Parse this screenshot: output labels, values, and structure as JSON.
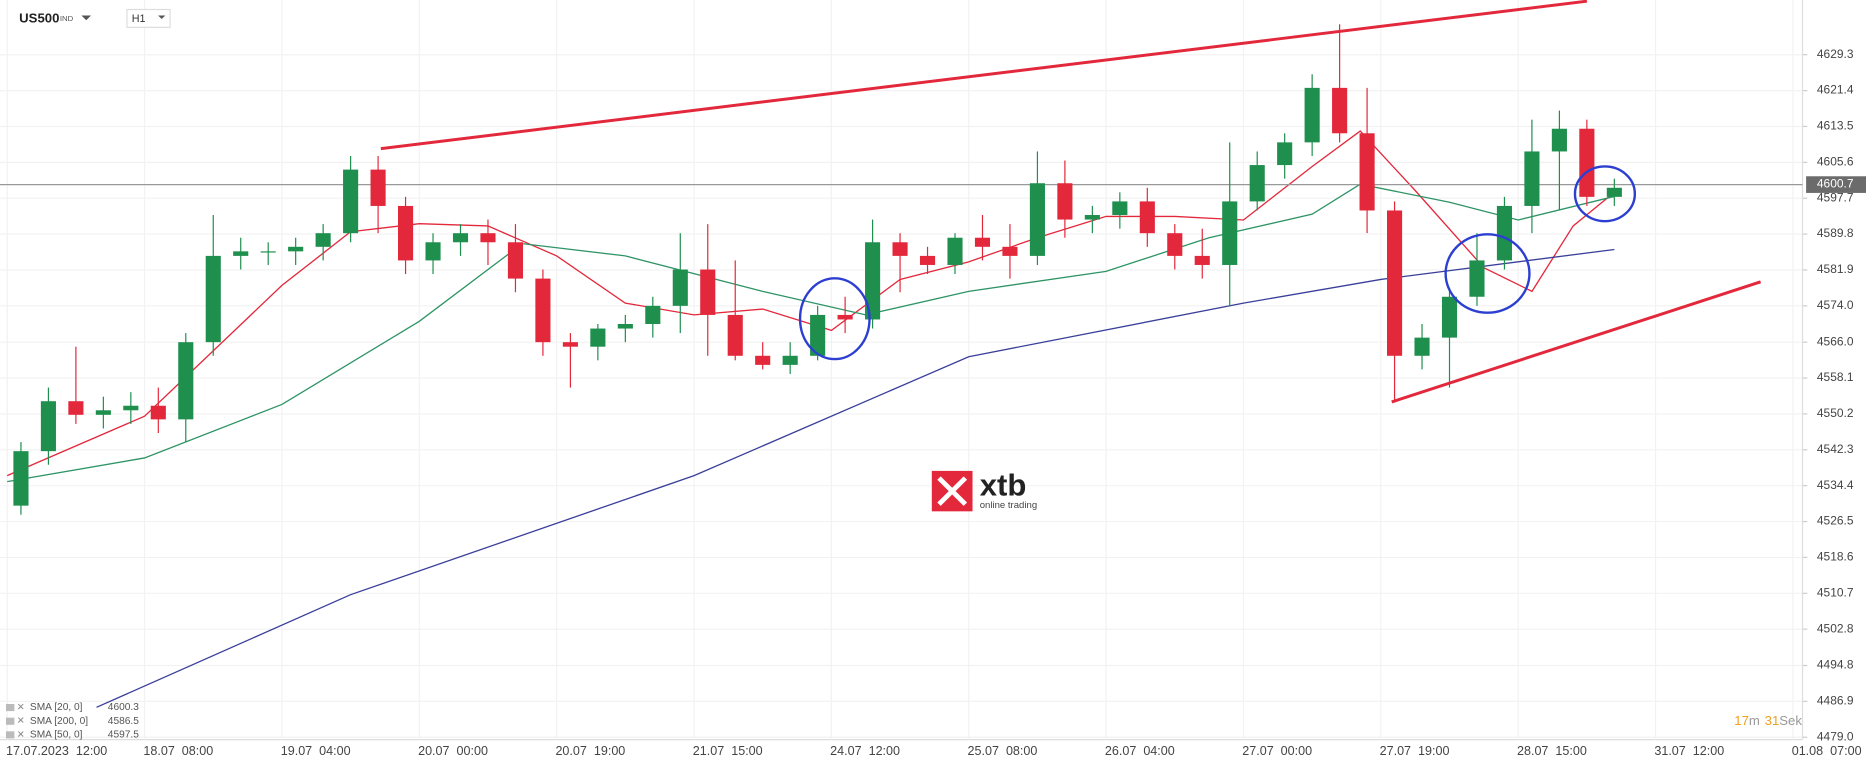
{
  "chart_data": {
    "type": "candlestick",
    "symbol": "US500",
    "symbol_class": "IND",
    "interval": "H1",
    "last_price": 4600.7,
    "timer": [
      "17",
      "m",
      "31",
      "Sek"
    ],
    "logo": {
      "brand": "xtb",
      "tagline": "online trading"
    },
    "up_color": "#1f8f4e",
    "down_color": "#e3283c",
    "grid": true,
    "xlim": [
      -1.05,
      261.4
    ],
    "ylim": [
      4478.47,
      4641.35
    ],
    "xticks": [
      {
        "value": 0,
        "label": "17.07.2023  12:00"
      },
      {
        "value": 20,
        "label": "18.07  08:00"
      },
      {
        "value": 40,
        "label": "19.07  04:00"
      },
      {
        "value": 60,
        "label": "20.07  00:00"
      },
      {
        "value": 80,
        "label": "20.07  19:00"
      },
      {
        "value": 100,
        "label": "21.07  15:00"
      },
      {
        "value": 120,
        "label": "24.07  12:00"
      },
      {
        "value": 140,
        "label": "25.07  08:00"
      },
      {
        "value": 160,
        "label": "26.07  04:00"
      },
      {
        "value": 180,
        "label": "27.07  00:00"
      },
      {
        "value": 200,
        "label": "27.07  19:00"
      },
      {
        "value": 220,
        "label": "28.07  15:00"
      },
      {
        "value": 240,
        "label": "31.07  12:00"
      },
      {
        "value": 260,
        "label": "01.08  07:00"
      }
    ],
    "yticks": [
      {
        "value": 4629.3,
        "label": "4629.3"
      },
      {
        "value": 4621.4,
        "label": "4621.4"
      },
      {
        "value": 4613.5,
        "label": "4613.5"
      },
      {
        "value": 4605.6,
        "label": "4605.6"
      },
      {
        "value": 4597.7,
        "label": "4597.7"
      },
      {
        "value": 4589.8,
        "label": "4589.8"
      },
      {
        "value": 4581.9,
        "label": "4581.9"
      },
      {
        "value": 4574.0,
        "label": "4574.0"
      },
      {
        "value": 4566.0,
        "label": "4566.0"
      },
      {
        "value": 4558.1,
        "label": "4558.1"
      },
      {
        "value": 4550.2,
        "label": "4550.2"
      },
      {
        "value": 4542.3,
        "label": "4542.3"
      },
      {
        "value": 4534.4,
        "label": "4534.4"
      },
      {
        "value": 4526.5,
        "label": "4526.5"
      },
      {
        "value": 4518.6,
        "label": "4518.6"
      },
      {
        "value": 4510.7,
        "label": "4510.7"
      },
      {
        "value": 4502.8,
        "label": "4502.8"
      },
      {
        "value": 4494.8,
        "label": "4494.8"
      },
      {
        "value": 4486.9,
        "label": "4486.9"
      },
      {
        "value": 4479.0,
        "label": "4479.0"
      }
    ],
    "x": [
      2,
      6,
      10,
      14,
      18,
      22,
      26,
      30,
      34,
      38,
      42,
      46,
      50,
      54,
      58,
      62,
      66,
      70,
      74,
      78,
      82,
      86,
      90,
      94,
      98,
      102,
      106,
      110,
      114,
      118,
      122,
      126,
      130,
      134,
      138,
      142,
      146,
      150,
      154,
      158,
      162,
      166,
      170,
      174,
      178,
      182,
      186,
      190,
      194,
      198,
      202,
      206,
      210,
      214,
      218,
      222,
      226,
      230,
      234
    ],
    "open": [
      4530,
      4542,
      4553,
      4550,
      4551,
      4552,
      4549,
      4566,
      4585,
      4586,
      4586,
      4587,
      4590,
      4604,
      4596,
      4584,
      4588,
      4590,
      4588,
      4580,
      4566,
      4565,
      4569,
      4570,
      4574,
      4582,
      4572,
      4563,
      4561,
      4563,
      4572,
      4571,
      4588,
      4585,
      4583,
      4589,
      4587,
      4585,
      4601,
      4593,
      4594,
      4597,
      4590,
      4585,
      4583,
      4597,
      4605,
      4610,
      4622,
      4612,
      4595,
      4563,
      4567,
      4576,
      4584,
      4596,
      4608,
      4613,
      4598
    ],
    "high": [
      4544,
      4556,
      4565,
      4554,
      4555,
      4556,
      4568,
      4594,
      4589,
      4588,
      4589,
      4592,
      4607,
      4607,
      4598,
      4590,
      4592,
      4593,
      4592,
      4582,
      4568,
      4570,
      4572,
      4576,
      4590,
      4592,
      4584,
      4566,
      4566,
      4574,
      4576,
      4593,
      4590,
      4587,
      4590,
      4594,
      4592,
      4608,
      4606,
      4596,
      4599,
      4600,
      4592,
      4591,
      4610,
      4608,
      4612,
      4625,
      4636,
      4622,
      4597,
      4570,
      4578,
      4590,
      4598,
      4615,
      4617,
      4615,
      4602
    ],
    "low": [
      4528,
      4539,
      4548,
      4547,
      4548,
      4546,
      4544,
      4563,
      4582,
      4583,
      4583,
      4584,
      4588,
      4590,
      4581,
      4581,
      4585,
      4583,
      4577,
      4563,
      4556,
      4562,
      4566,
      4567,
      4568,
      4563,
      4562,
      4560,
      4559,
      4562,
      4568,
      4569,
      4577,
      4581,
      4581,
      4584,
      4580,
      4583,
      4589,
      4590,
      4591,
      4587,
      4582,
      4580,
      4574,
      4595,
      4602,
      4607,
      4610,
      4590,
      4553,
      4560,
      4556,
      4574,
      4582,
      4590,
      4595,
      4596,
      4596
    ],
    "close": [
      4542,
      4553,
      4550,
      4551,
      4552,
      4549,
      4566,
      4585,
      4586,
      4586,
      4587,
      4590,
      4604,
      4596,
      4584,
      4588,
      4590,
      4588,
      4580,
      4566,
      4565,
      4569,
      4570,
      4574,
      4582,
      4572,
      4563,
      4561,
      4563,
      4572,
      4571,
      4588,
      4585,
      4583,
      4589,
      4587,
      4585,
      4601,
      4593,
      4594,
      4597,
      4590,
      4585,
      4583,
      4597,
      4605,
      4610,
      4622,
      4612,
      4595,
      4563,
      4567,
      4576,
      4584,
      4596,
      4608,
      4613,
      4598,
      4600
    ],
    "series": [
      {
        "name": "SMA [20, 0]",
        "last": 4600.3,
        "color": "#e3283c",
        "x": [
          0,
          20,
          40,
          50,
          60,
          70,
          80,
          90,
          100,
          110,
          120,
          130,
          140,
          150,
          160,
          170,
          180,
          190,
          197,
          205,
          215,
          222,
          228,
          234
        ],
        "values": [
          4536.6,
          4549.7,
          4578.5,
          4590.3,
          4592.1,
          4591.6,
          4585.0,
          4574.6,
          4572.0,
          4573.3,
          4568.6,
          4579.8,
          4583.7,
          4589.0,
          4593.7,
          4593.7,
          4592.9,
          4604.7,
          4612.5,
          4599.4,
          4582.4,
          4577.2,
          4591.6,
          4599.0
        ]
      },
      {
        "name": "SMA [200, 0]",
        "last": 4586.5,
        "color": "#3a3f9a",
        "x": [
          13,
          50,
          100,
          140,
          180,
          200,
          234
        ],
        "values": [
          4485.6,
          4510.4,
          4536.6,
          4562.8,
          4574.6,
          4579.8,
          4586.4
        ]
      },
      {
        "name": "SMA [50, 0]",
        "last": 4597.5,
        "color": "#2e9466",
        "x": [
          0,
          20,
          40,
          60,
          75,
          90,
          110,
          125,
          140,
          160,
          175,
          190,
          197,
          210,
          220,
          234
        ],
        "values": [
          4535.3,
          4540.5,
          4552.3,
          4570.6,
          4587.7,
          4585.0,
          4577.2,
          4572.0,
          4577.2,
          4581.6,
          4589.0,
          4594.2,
          4600.8,
          4596.8,
          4592.9,
          4598.1
        ]
      }
    ]
  }
}
